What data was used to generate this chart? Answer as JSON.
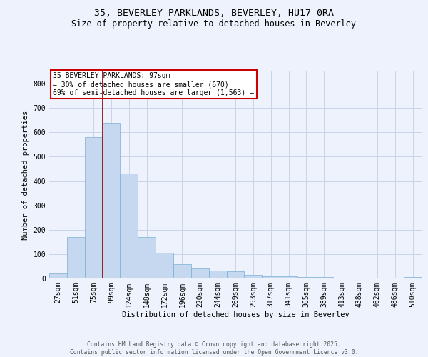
{
  "title1": "35, BEVERLEY PARKLANDS, BEVERLEY, HU17 0RA",
  "title2": "Size of property relative to detached houses in Beverley",
  "xlabel": "Distribution of detached houses by size in Beverley",
  "ylabel": "Number of detached properties",
  "categories": [
    "27sqm",
    "51sqm",
    "75sqm",
    "99sqm",
    "124sqm",
    "148sqm",
    "172sqm",
    "196sqm",
    "220sqm",
    "244sqm",
    "269sqm",
    "293sqm",
    "317sqm",
    "341sqm",
    "365sqm",
    "389sqm",
    "413sqm",
    "438sqm",
    "462sqm",
    "486sqm",
    "510sqm"
  ],
  "values": [
    20,
    170,
    580,
    640,
    430,
    170,
    105,
    58,
    42,
    33,
    30,
    15,
    10,
    8,
    7,
    5,
    4,
    2,
    2,
    1,
    6
  ],
  "bar_color": "#c5d8f0",
  "bar_edge_color": "#7aafd4",
  "vline_color": "#8b0000",
  "annotation_text": "35 BEVERLEY PARKLANDS: 97sqm\n← 30% of detached houses are smaller (670)\n69% of semi-detached houses are larger (1,563) →",
  "annotation_box_color": "#ffffff",
  "annotation_box_edge": "#cc0000",
  "ylim": [
    0,
    850
  ],
  "yticks": [
    0,
    100,
    200,
    300,
    400,
    500,
    600,
    700,
    800
  ],
  "footer1": "Contains HM Land Registry data © Crown copyright and database right 2025.",
  "footer2": "Contains public sector information licensed under the Open Government Licence v3.0.",
  "bg_color": "#edf2fc",
  "grid_color": "#c8d4e8",
  "title1_fontsize": 9.5,
  "title2_fontsize": 8.5,
  "xlabel_fontsize": 7.5,
  "ylabel_fontsize": 7.5,
  "tick_fontsize": 7,
  "annotation_fontsize": 7,
  "footer_fontsize": 5.8
}
